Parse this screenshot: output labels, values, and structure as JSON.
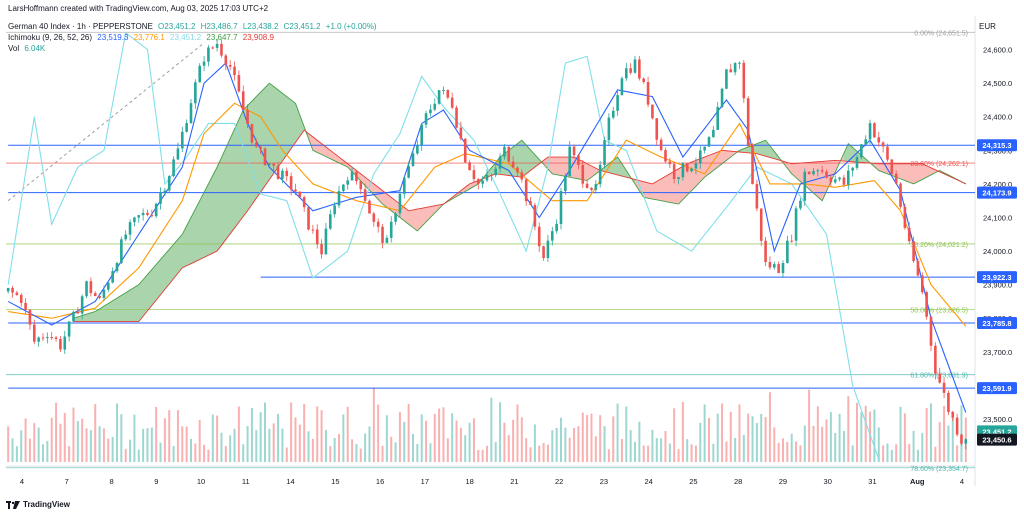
{
  "header": {
    "credit": "LarsHoffmann created with TradingView.com, Aug 03, 2025 17:03 UTC+2",
    "symbol": "German 40 Index · 1h · PEPPERSTONE",
    "ohlc": {
      "O": "O23,451.2",
      "H": "H23,486.7",
      "L": "L23,438.2",
      "C": "C23,451.2",
      "change": "+1.0 (+0.00%)"
    },
    "ichimoku_label": "Ichimoku (9, 26, 52, 26)",
    "ichimoku_values": [
      "23,519.3",
      "23,776.1",
      "23,451.2",
      "23,647.7",
      "23,908.9"
    ],
    "vol_label": "Vol",
    "vol_value": "6.04K",
    "currency": "EUR"
  },
  "footer": {
    "brand": "TradingView"
  },
  "colors": {
    "up": "#26a69a",
    "down": "#ef5350",
    "tenkan": "#2962ff",
    "kijun": "#ff9800",
    "lagging": "#80deea",
    "senkou_a": "#43a047",
    "senkou_b": "#e53935",
    "cloud_bull": "rgba(67,160,71,0.45)",
    "cloud_bear": "rgba(244,67,54,0.35)",
    "hline": "#2962ff",
    "fib_green": "#8bc34a",
    "fib_teal": "#4db6ac",
    "fib_red": "#ef5350",
    "fib_gray": "#9e9e9e"
  },
  "chart_data": {
    "type": "candlestick",
    "ylim": [
      23360,
      24700
    ],
    "y_ticks": [
      23500,
      23600,
      23700,
      23800,
      23900,
      24000,
      24100,
      24200,
      24300,
      24400,
      24500,
      24600
    ],
    "y_tick_labels": [
      "23,500.0",
      "23,600.0",
      "23,700.0",
      "23,800.0",
      "23,900.0",
      "24,000.0",
      "24,100.0",
      "24,200.0",
      "24,300.0",
      "24,400.0",
      "24,500.0",
      "24,600.0"
    ],
    "x_labels": [
      "4",
      "7",
      "8",
      "9",
      "10",
      "11",
      "14",
      "15",
      "16",
      "17",
      "18",
      "21",
      "22",
      "23",
      "24",
      "25",
      "28",
      "29",
      "30",
      "31",
      "Aug",
      "4"
    ],
    "price_anchors": [
      [
        0,
        23880
      ],
      [
        3,
        23860
      ],
      [
        6,
        23730
      ],
      [
        9,
        23760
      ],
      [
        12,
        23720
      ],
      [
        15,
        23800
      ],
      [
        18,
        23900
      ],
      [
        21,
        23850
      ],
      [
        24,
        23950
      ],
      [
        27,
        24050
      ],
      [
        30,
        24100
      ],
      [
        33,
        24120
      ],
      [
        36,
        24200
      ],
      [
        39,
        24300
      ],
      [
        42,
        24450
      ],
      [
        45,
        24580
      ],
      [
        48,
        24620
      ],
      [
        51,
        24550
      ],
      [
        54,
        24420
      ],
      [
        57,
        24300
      ],
      [
        60,
        24260
      ],
      [
        63,
        24220
      ],
      [
        66,
        24180
      ],
      [
        69,
        24080
      ],
      [
        72,
        24000
      ],
      [
        75,
        24150
      ],
      [
        78,
        24230
      ],
      [
        81,
        24200
      ],
      [
        84,
        24080
      ],
      [
        87,
        24020
      ],
      [
        90,
        24180
      ],
      [
        93,
        24280
      ],
      [
        96,
        24400
      ],
      [
        99,
        24480
      ],
      [
        102,
        24440
      ],
      [
        105,
        24280
      ],
      [
        108,
        24200
      ],
      [
        111,
        24220
      ],
      [
        114,
        24300
      ],
      [
        117,
        24250
      ],
      [
        120,
        24120
      ],
      [
        123,
        23980
      ],
      [
        126,
        24100
      ],
      [
        129,
        24300
      ],
      [
        132,
        24220
      ],
      [
        135,
        24180
      ],
      [
        138,
        24380
      ],
      [
        141,
        24530
      ],
      [
        144,
        24560
      ],
      [
        147,
        24450
      ],
      [
        150,
        24300
      ],
      [
        153,
        24230
      ],
      [
        156,
        24250
      ],
      [
        159,
        24280
      ],
      [
        162,
        24350
      ],
      [
        165,
        24530
      ],
      [
        168,
        24570
      ],
      [
        171,
        24200
      ],
      [
        174,
        23960
      ],
      [
        177,
        23950
      ],
      [
        180,
        24050
      ],
      [
        183,
        24230
      ],
      [
        186,
        24250
      ],
      [
        189,
        24220
      ],
      [
        192,
        24200
      ],
      [
        195,
        24280
      ],
      [
        198,
        24380
      ],
      [
        201,
        24300
      ],
      [
        204,
        24200
      ],
      [
        207,
        24010
      ],
      [
        210,
        23880
      ],
      [
        213,
        23650
      ],
      [
        216,
        23530
      ],
      [
        219,
        23440
      ],
      [
        220,
        23451
      ]
    ],
    "tenkan_anchors": [
      [
        0,
        23850
      ],
      [
        10,
        23780
      ],
      [
        20,
        23850
      ],
      [
        30,
        24050
      ],
      [
        40,
        24250
      ],
      [
        45,
        24500
      ],
      [
        50,
        24560
      ],
      [
        55,
        24380
      ],
      [
        60,
        24250
      ],
      [
        70,
        24120
      ],
      [
        80,
        24160
      ],
      [
        90,
        24180
      ],
      [
        95,
        24380
      ],
      [
        100,
        24420
      ],
      [
        106,
        24300
      ],
      [
        115,
        24240
      ],
      [
        122,
        24100
      ],
      [
        128,
        24220
      ],
      [
        140,
        24480
      ],
      [
        148,
        24460
      ],
      [
        155,
        24280
      ],
      [
        165,
        24450
      ],
      [
        170,
        24360
      ],
      [
        176,
        24000
      ],
      [
        182,
        24200
      ],
      [
        190,
        24230
      ],
      [
        198,
        24330
      ],
      [
        205,
        24180
      ],
      [
        212,
        23800
      ],
      [
        220,
        23519
      ]
    ],
    "kijun_anchors": [
      [
        0,
        23820
      ],
      [
        10,
        23800
      ],
      [
        20,
        23830
      ],
      [
        30,
        23950
      ],
      [
        40,
        24150
      ],
      [
        45,
        24350
      ],
      [
        52,
        24440
      ],
      [
        58,
        24400
      ],
      [
        63,
        24300
      ],
      [
        70,
        24200
      ],
      [
        80,
        24150
      ],
      [
        90,
        24120
      ],
      [
        98,
        24250
      ],
      [
        105,
        24290
      ],
      [
        115,
        24260
      ],
      [
        125,
        24150
      ],
      [
        133,
        24150
      ],
      [
        142,
        24330
      ],
      [
        150,
        24280
      ],
      [
        160,
        24230
      ],
      [
        168,
        24380
      ],
      [
        175,
        24200
      ],
      [
        183,
        24200
      ],
      [
        190,
        24190
      ],
      [
        199,
        24210
      ],
      [
        205,
        24120
      ],
      [
        212,
        23900
      ],
      [
        220,
        23776
      ]
    ],
    "lagging_anchors": [
      [
        0,
        23900
      ],
      [
        6,
        24400
      ],
      [
        10,
        24080
      ],
      [
        16,
        24250
      ],
      [
        22,
        24300
      ],
      [
        27,
        24650
      ],
      [
        32,
        24600
      ],
      [
        36,
        24200
      ],
      [
        41,
        24280
      ],
      [
        46,
        24380
      ],
      [
        52,
        24380
      ],
      [
        58,
        24170
      ],
      [
        64,
        24150
      ],
      [
        70,
        23920
      ],
      [
        78,
        24000
      ],
      [
        84,
        24230
      ],
      [
        90,
        24350
      ],
      [
        95,
        24520
      ],
      [
        100,
        24430
      ],
      [
        107,
        24330
      ],
      [
        113,
        24170
      ],
      [
        119,
        24000
      ],
      [
        124,
        24250
      ],
      [
        128,
        24560
      ],
      [
        133,
        24580
      ],
      [
        137,
        24330
      ],
      [
        142,
        24300
      ],
      [
        149,
        24060
      ],
      [
        157,
        24000
      ],
      [
        165,
        24130
      ],
      [
        172,
        24250
      ],
      [
        180,
        24200
      ],
      [
        188,
        24050
      ],
      [
        194,
        23600
      ],
      [
        200,
        23380
      ]
    ],
    "senkou_a_anchors": [
      [
        15,
        23800
      ],
      [
        20,
        23820
      ],
      [
        30,
        23900
      ],
      [
        40,
        24050
      ],
      [
        48,
        24250
      ],
      [
        54,
        24420
      ],
      [
        60,
        24500
      ],
      [
        66,
        24440
      ],
      [
        70,
        24300
      ],
      [
        78,
        24250
      ],
      [
        86,
        24140
      ],
      [
        94,
        24060
      ],
      [
        100,
        24140
      ],
      [
        108,
        24200
      ],
      [
        113,
        24280
      ],
      [
        118,
        24330
      ],
      [
        125,
        24230
      ],
      [
        133,
        24210
      ],
      [
        140,
        24280
      ],
      [
        146,
        24160
      ],
      [
        154,
        24140
      ],
      [
        160,
        24220
      ],
      [
        168,
        24300
      ],
      [
        174,
        24330
      ],
      [
        180,
        24230
      ],
      [
        187,
        24150
      ],
      [
        193,
        24320
      ],
      [
        200,
        24240
      ],
      [
        208,
        24200
      ],
      [
        214,
        24240
      ],
      [
        220,
        24200
      ]
    ],
    "senkou_b_anchors": [
      [
        15,
        23790
      ],
      [
        30,
        23790
      ],
      [
        40,
        23950
      ],
      [
        48,
        24000
      ],
      [
        55,
        24120
      ],
      [
        62,
        24250
      ],
      [
        68,
        24360
      ],
      [
        74,
        24300
      ],
      [
        80,
        24240
      ],
      [
        86,
        24180
      ],
      [
        92,
        24120
      ],
      [
        100,
        24140
      ],
      [
        106,
        24200
      ],
      [
        112,
        24230
      ],
      [
        118,
        24220
      ],
      [
        124,
        24280
      ],
      [
        130,
        24280
      ],
      [
        136,
        24240
      ],
      [
        142,
        24220
      ],
      [
        148,
        24200
      ],
      [
        156,
        24260
      ],
      [
        164,
        24300
      ],
      [
        172,
        24290
      ],
      [
        180,
        24260
      ],
      [
        190,
        24270
      ],
      [
        200,
        24260
      ],
      [
        210,
        24260
      ],
      [
        220,
        24200
      ]
    ],
    "horizontal_levels": [
      {
        "value": 24315.3,
        "label": "24,315.3",
        "start": 0
      },
      {
        "value": 24173.9,
        "label": "24,173.9",
        "start": 0
      },
      {
        "value": 23922.3,
        "label": "23,922.3",
        "start": 58
      },
      {
        "value": 23785.8,
        "label": "23,785.8",
        "start": 0
      },
      {
        "value": 23591.9,
        "label": "23,591.9",
        "start": 0
      }
    ],
    "fib_levels": [
      {
        "value": 24651.5,
        "text": "0.00% (24,651.5)",
        "color": "fib_gray"
      },
      {
        "value": 24262.1,
        "text": "23.60% (24,262.1)",
        "color": "fib_red"
      },
      {
        "value": 24021.2,
        "text": "38.20% (24,021.2)",
        "color": "fib_green"
      },
      {
        "value": 23826.5,
        "text": "50.00% (23,826.5)",
        "color": "fib_green"
      },
      {
        "value": 23631.9,
        "text": "61.80% (23,631.9)",
        "color": "fib_teal"
      },
      {
        "value": 23354.7,
        "text": "78.60% (23,354.7)",
        "color": "fib_teal"
      }
    ],
    "last_price": {
      "value": 23451.2,
      "label": "23,451.2"
    },
    "last_price_2": {
      "value": 23450.6,
      "label": "23,450.6"
    },
    "bars_count": 221
  }
}
